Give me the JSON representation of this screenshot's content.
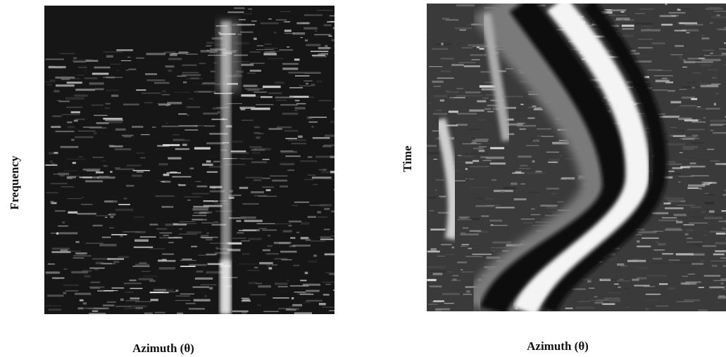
{
  "panels": [
    {
      "y_label": "Frequency",
      "x_label": "Azimuth (θ)"
    },
    {
      "y_label": "Time",
      "x_label": "Azimuth (θ)"
    }
  ]
}
